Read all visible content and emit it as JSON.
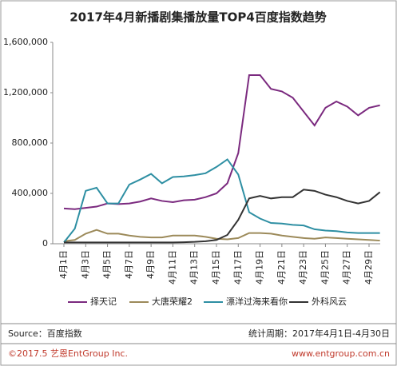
{
  "chart_data": {
    "type": "line",
    "title": "2017年4月新播剧集播放量TOP4百度指数趋势",
    "categories": [
      "4月1日",
      null,
      "4月3日",
      null,
      "4月5日",
      null,
      "4月7日",
      null,
      "4月9日",
      null,
      "4月11日",
      null,
      "4月13日",
      null,
      "4月15日",
      null,
      "4月17日",
      null,
      "4月19日",
      null,
      "4月21日",
      null,
      "4月23日",
      null,
      "4月25日",
      null,
      "4月27日",
      null,
      "4月29日",
      null
    ],
    "series": [
      {
        "name": "择天记",
        "color": "#7b2a7f",
        "values": [
          280000,
          275000,
          285000,
          295000,
          320000,
          315000,
          320000,
          335000,
          360000,
          340000,
          330000,
          345000,
          350000,
          370000,
          400000,
          480000,
          720000,
          1340000,
          1340000,
          1230000,
          1210000,
          1160000,
          1050000,
          940000,
          1080000,
          1130000,
          1090000,
          1020000,
          1080000,
          1100000
        ]
      },
      {
        "name": "大唐荣耀2",
        "color": "#9c8a5a",
        "values": [
          20000,
          30000,
          80000,
          110000,
          80000,
          80000,
          65000,
          55000,
          50000,
          50000,
          65000,
          65000,
          65000,
          55000,
          40000,
          35000,
          45000,
          85000,
          85000,
          80000,
          65000,
          55000,
          45000,
          40000,
          50000,
          45000,
          40000,
          35000,
          30000,
          25000
        ]
      },
      {
        "name": "漂洋过海来看你",
        "color": "#2e8fa3",
        "values": [
          10000,
          120000,
          420000,
          445000,
          320000,
          320000,
          470000,
          510000,
          555000,
          480000,
          530000,
          535000,
          545000,
          560000,
          610000,
          670000,
          550000,
          250000,
          200000,
          165000,
          160000,
          150000,
          145000,
          115000,
          105000,
          100000,
          90000,
          85000,
          85000,
          85000
        ]
      },
      {
        "name": "外科风云",
        "color": "#333333",
        "values": [
          10000,
          10000,
          10000,
          10000,
          10000,
          10000,
          10000,
          10000,
          10000,
          10000,
          10000,
          12000,
          15000,
          20000,
          30000,
          70000,
          190000,
          360000,
          380000,
          360000,
          370000,
          370000,
          430000,
          420000,
          390000,
          370000,
          340000,
          320000,
          340000,
          410000
        ]
      }
    ],
    "ylim": [
      0,
      1600000
    ],
    "yticks": [
      0,
      {
        "value": 400000,
        "label": "400,000"
      },
      {
        "value": 800000,
        "label": "800,000"
      },
      {
        "value": 1200000,
        "label": "1,200,000"
      },
      {
        "value": 1600000,
        "label": "1,600,000"
      }
    ],
    "legend": "bottom",
    "source": "Source：百度指数",
    "period": "统计周期：2017年4月1日-4月30日",
    "copyright": "©2017.5  艺恩EntGroup Inc.",
    "website": "www.entgroup.com.cn"
  }
}
